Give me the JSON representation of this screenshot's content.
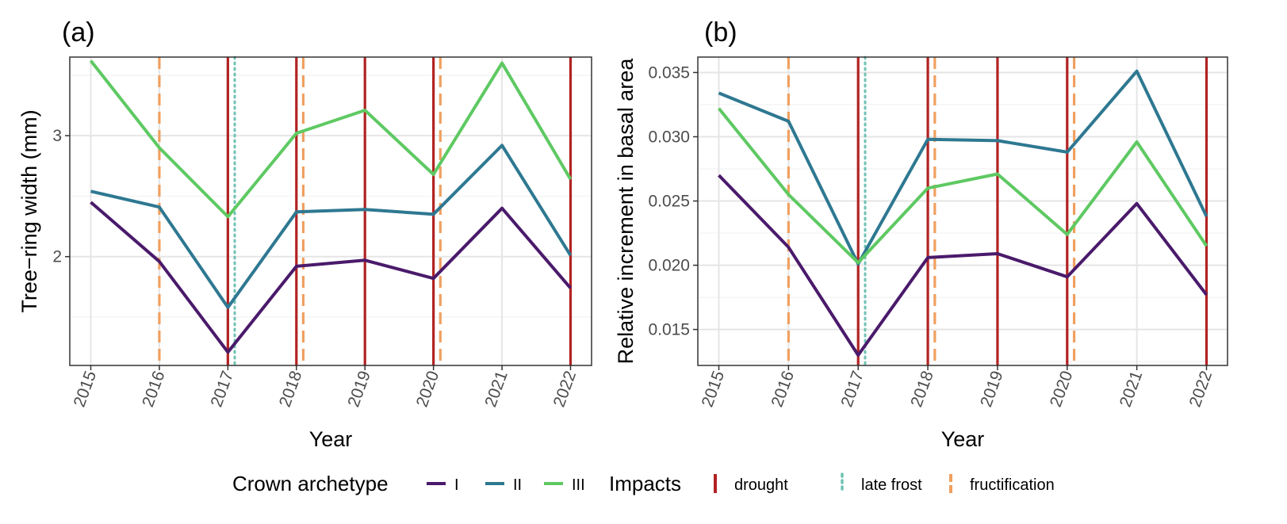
{
  "colors": {
    "I": "#4a1a6b",
    "II": "#2e7891",
    "III": "#5ec962",
    "drought": "#b22222",
    "late_frost": "#6fc2b3",
    "fructification": "#f0a060",
    "grid_major": "#e5e5e5",
    "grid_minor": "#f2f2f2",
    "tick_text": "#4d4d4d"
  },
  "chart_data": [
    {
      "panel": "(a)",
      "type": "line",
      "x": [
        "2015",
        "2016",
        "2017",
        "2018",
        "2019",
        "2020",
        "2021",
        "2022"
      ],
      "xlabel": "Year",
      "ylabel": "Tree−ring width (mm)",
      "ylim": [
        1.1,
        3.65
      ],
      "yticks": [
        2,
        3
      ],
      "ytick_labels": [
        "2",
        "3"
      ],
      "grid": true,
      "series": [
        {
          "name": "I",
          "values": [
            2.45,
            1.96,
            1.21,
            1.92,
            1.97,
            1.82,
            2.4,
            1.74
          ]
        },
        {
          "name": "II",
          "values": [
            2.54,
            2.41,
            1.58,
            2.37,
            2.39,
            2.35,
            2.92,
            2.01
          ]
        },
        {
          "name": "III",
          "values": [
            3.62,
            2.9,
            2.33,
            3.02,
            3.21,
            2.68,
            3.6,
            2.64
          ]
        }
      ],
      "events": [
        {
          "impact": "drought",
          "x": 2017
        },
        {
          "impact": "drought",
          "x": 2018
        },
        {
          "impact": "drought",
          "x": 2019
        },
        {
          "impact": "drought",
          "x": 2020
        },
        {
          "impact": "drought",
          "x": 2022
        },
        {
          "impact": "late frost",
          "x": 2017.1
        },
        {
          "impact": "fructification",
          "x": 2016
        },
        {
          "impact": "fructification",
          "x": 2018.1
        },
        {
          "impact": "fructification",
          "x": 2020.1
        }
      ]
    },
    {
      "panel": "(b)",
      "type": "line",
      "x": [
        "2015",
        "2016",
        "2017",
        "2018",
        "2019",
        "2020",
        "2021",
        "2022"
      ],
      "xlabel": "Year",
      "ylabel": "Relative increment in basal area",
      "ylim": [
        0.0122,
        0.0362
      ],
      "yticks": [
        0.015,
        0.02,
        0.025,
        0.03,
        0.035
      ],
      "ytick_labels": [
        "0.015",
        "0.020",
        "0.025",
        "0.030",
        "0.035"
      ],
      "grid": true,
      "series": [
        {
          "name": "I",
          "values": [
            0.027,
            0.0214,
            0.013,
            0.0206,
            0.0209,
            0.0191,
            0.0248,
            0.0177
          ]
        },
        {
          "name": "II",
          "values": [
            0.0334,
            0.0312,
            0.0201,
            0.0298,
            0.0297,
            0.0288,
            0.0351,
            0.0238
          ]
        },
        {
          "name": "III",
          "values": [
            0.0322,
            0.0255,
            0.0202,
            0.026,
            0.0271,
            0.0224,
            0.0296,
            0.0215
          ]
        }
      ],
      "events": [
        {
          "impact": "drought",
          "x": 2017
        },
        {
          "impact": "drought",
          "x": 2018
        },
        {
          "impact": "drought",
          "x": 2019
        },
        {
          "impact": "drought",
          "x": 2020
        },
        {
          "impact": "drought",
          "x": 2022
        },
        {
          "impact": "late frost",
          "x": 2017.1
        },
        {
          "impact": "fructification",
          "x": 2016
        },
        {
          "impact": "fructification",
          "x": 2018.1
        },
        {
          "impact": "fructification",
          "x": 2020.1
        }
      ]
    }
  ],
  "legend": {
    "placement": "bottom",
    "crown_title": "Crown archetype",
    "crown_items": [
      {
        "label": "I",
        "color_key": "I"
      },
      {
        "label": "II",
        "color_key": "II"
      },
      {
        "label": "III",
        "color_key": "III"
      }
    ],
    "impacts_title": "Impacts",
    "impact_items": [
      {
        "label": "drought",
        "color_key": "drought",
        "style": "solid"
      },
      {
        "label": "late frost",
        "color_key": "late_frost",
        "style": "dotted"
      },
      {
        "label": "fructification",
        "color_key": "fructification",
        "style": "dashed"
      }
    ]
  }
}
